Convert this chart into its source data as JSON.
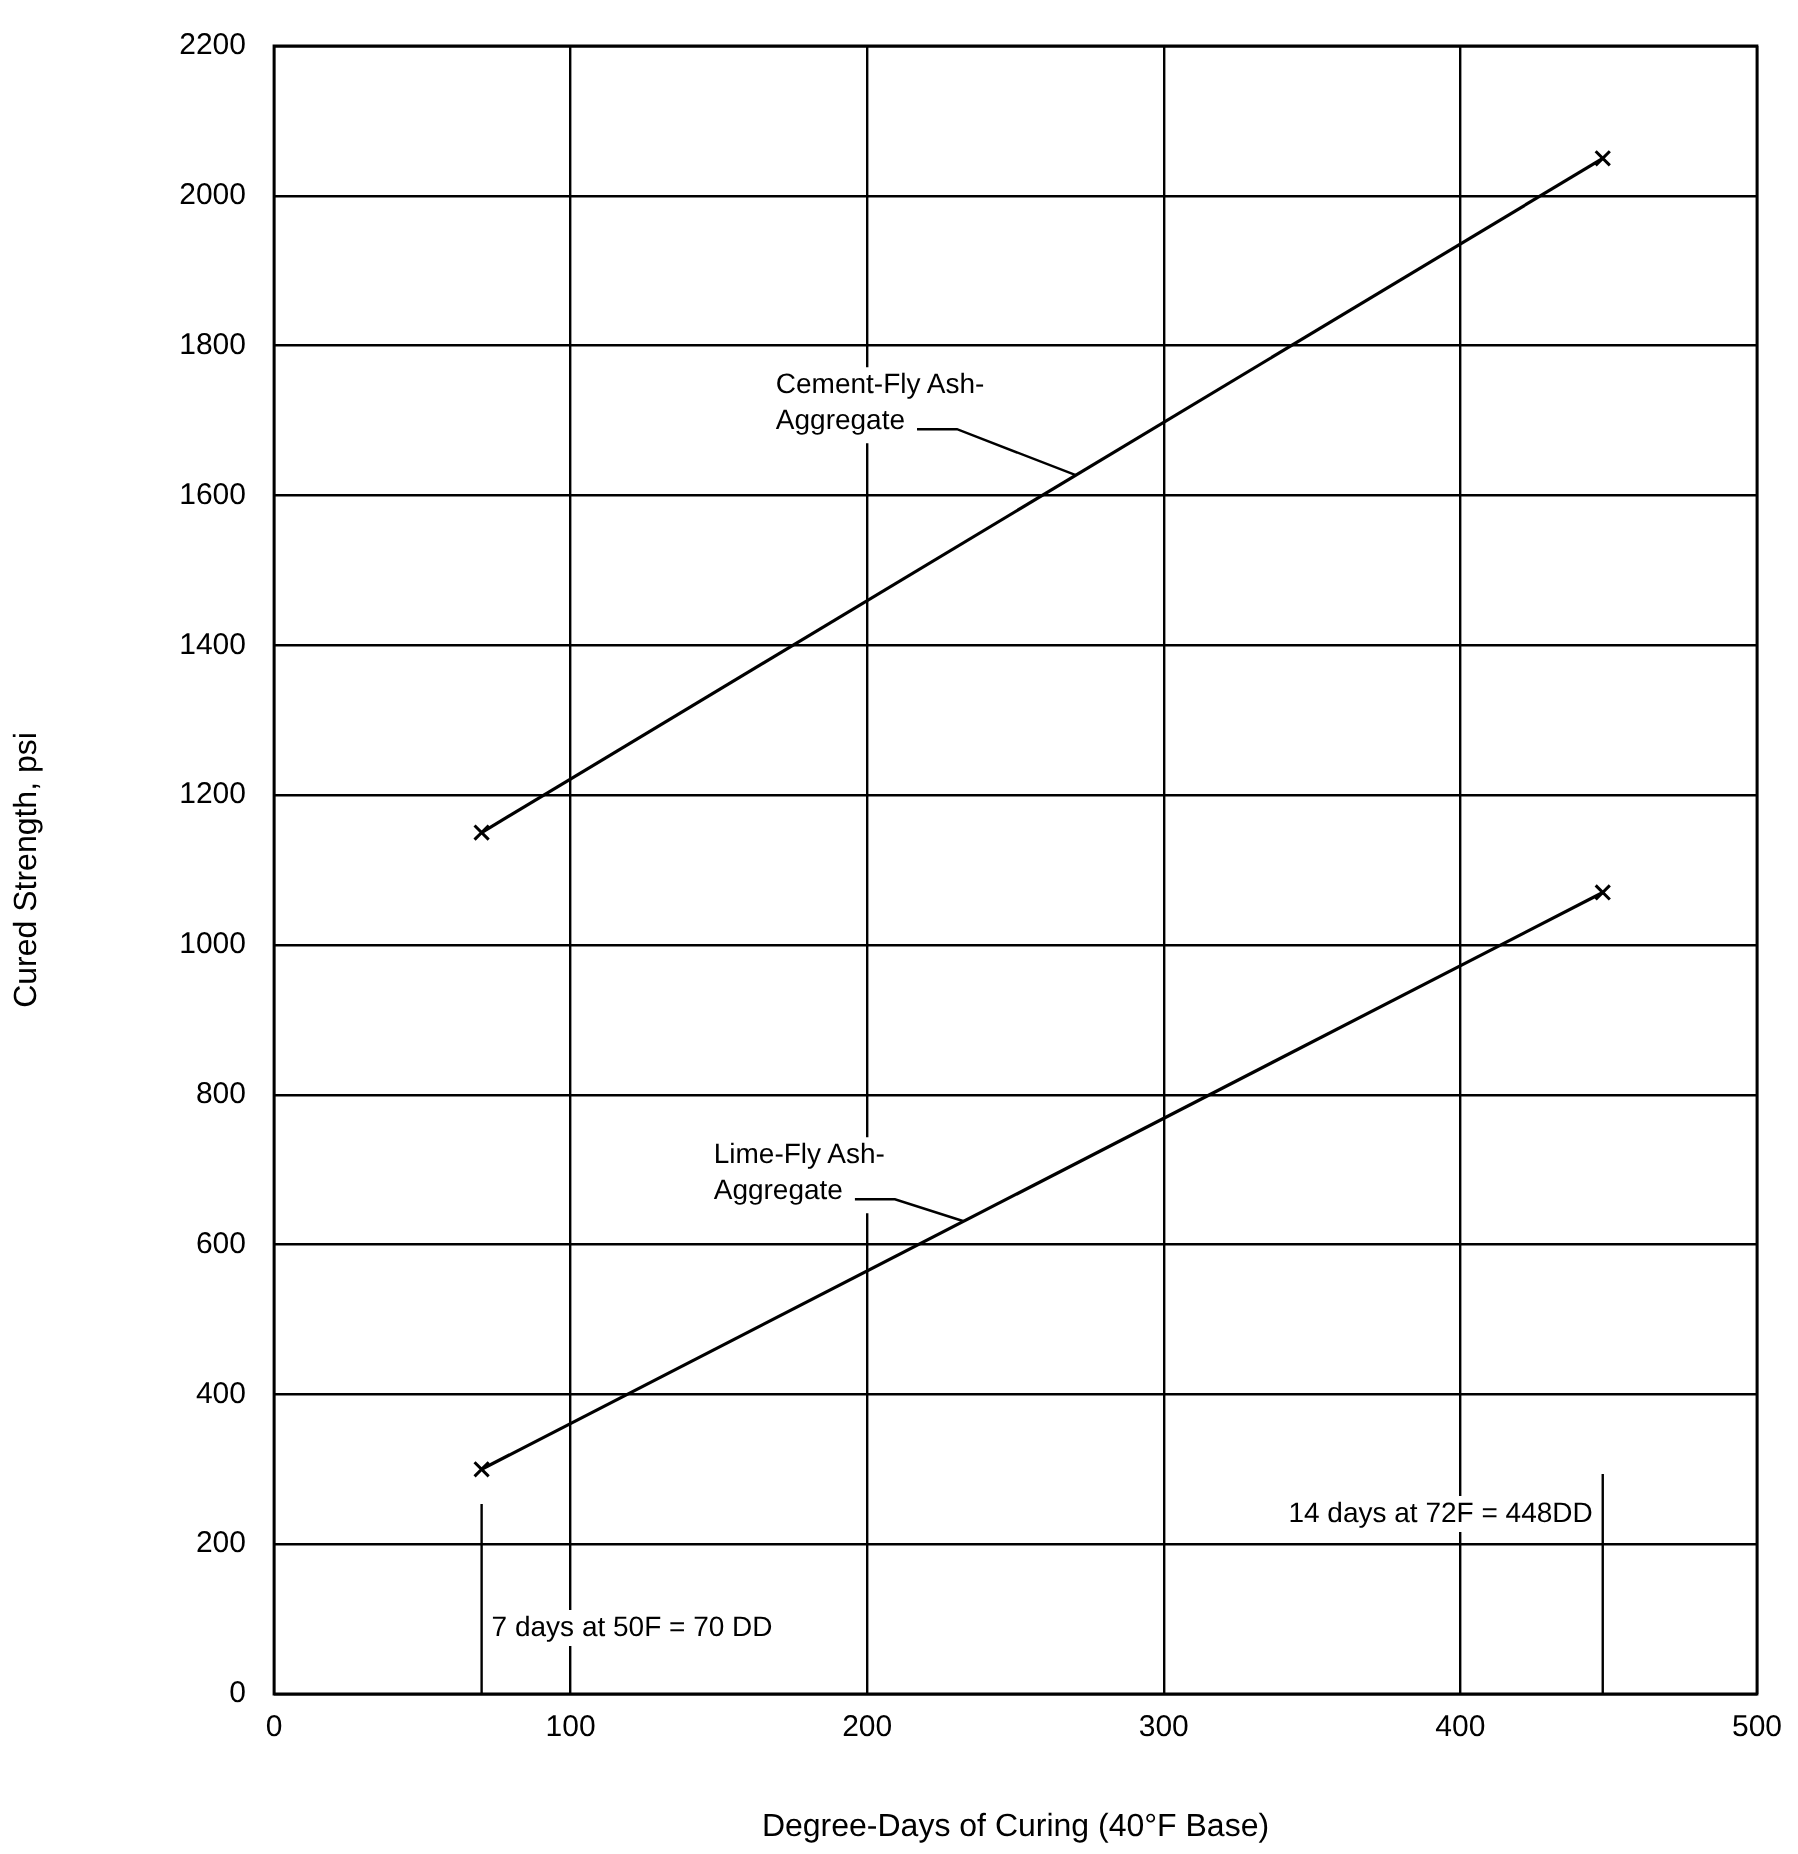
{
  "chart_data": {
    "type": "line",
    "xlabel": "Degree-Days of Curing (40°F Base)",
    "ylabel": "Cured Strength, psi",
    "xlim": [
      0,
      500
    ],
    "xticks": [
      0,
      100,
      200,
      300,
      400,
      500
    ],
    "ylim": [
      0,
      2200
    ],
    "yticks": [
      0,
      200,
      400,
      600,
      800,
      1000,
      1200,
      1400,
      1600,
      1800,
      2000,
      2200
    ],
    "x": [
      70,
      448
    ],
    "grid": true,
    "legend": false,
    "marker": "cross",
    "line_style": "solid",
    "series": [
      {
        "name": "Cement-Fly Ash-Aggregate",
        "color": "#000000",
        "values": [
          1150,
          2050
        ]
      },
      {
        "name": "Lime-Fly Ash-Aggregate",
        "color": "#000000",
        "values": [
          300,
          1070
        ]
      }
    ],
    "ref_lines": [
      {
        "axis": "x",
        "value": 70,
        "label": "7 days at 50F = 70 DD",
        "color": "#000000"
      },
      {
        "axis": "x",
        "value": 448,
        "label": "14 days at 72F = 448DD",
        "color": "#000000"
      }
    ]
  }
}
